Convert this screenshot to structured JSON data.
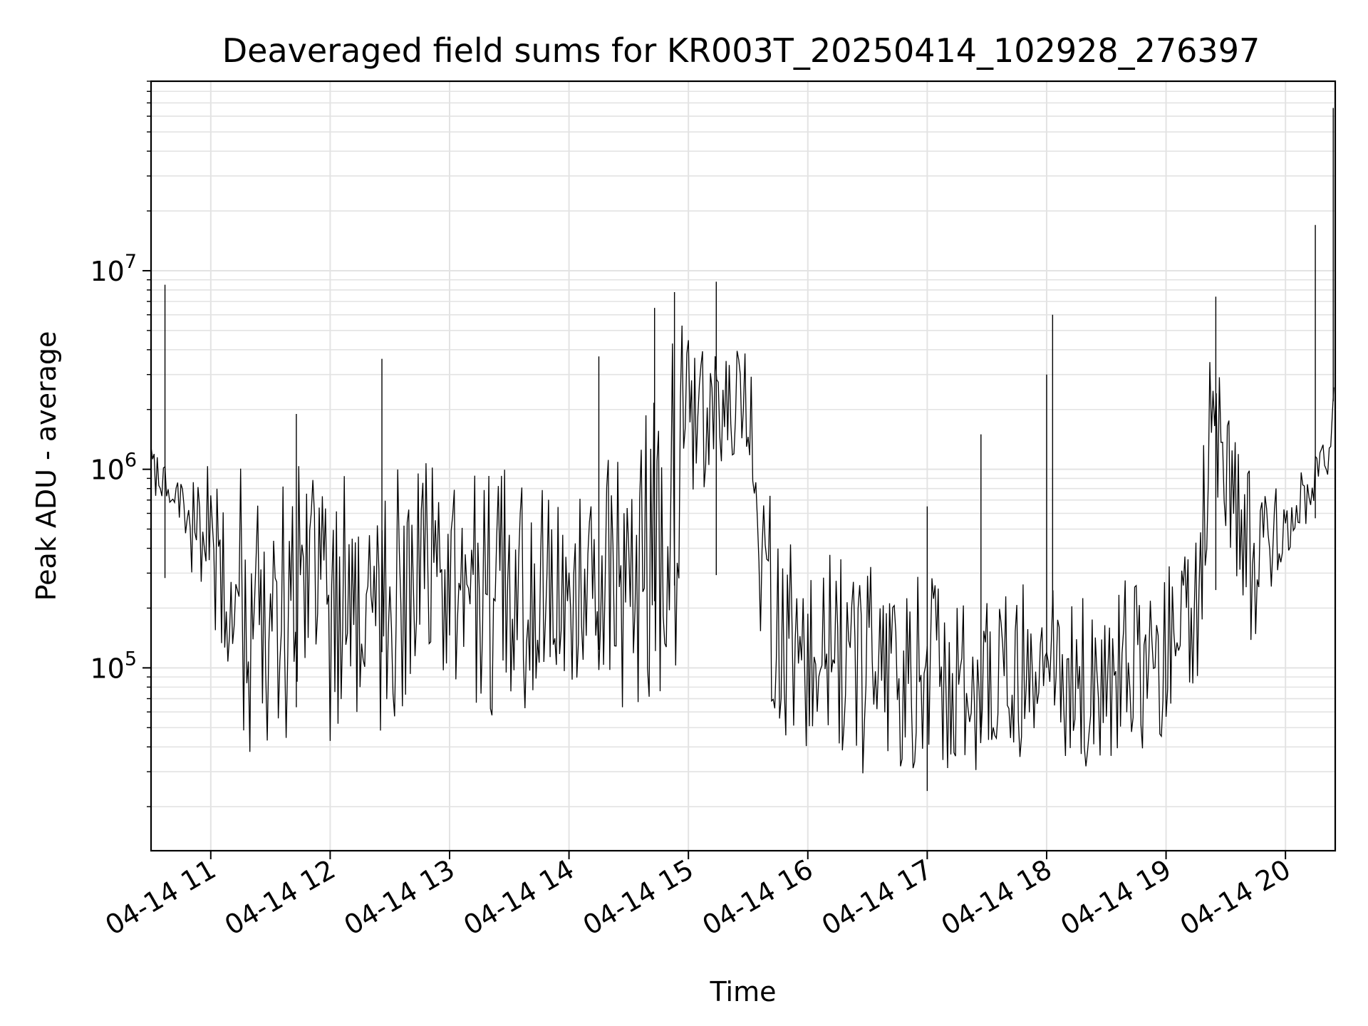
{
  "chart_data": {
    "type": "line",
    "title": "Deaveraged field sums for KR003T_20250414_102928_276397",
    "xlabel": "Time",
    "ylabel": "Peak ADU - average",
    "yscale": "log",
    "grid": true,
    "legend": "none",
    "line_color": "#000000",
    "xlim": [
      "2025-04-14 10:30",
      "2025-04-14 20:25"
    ],
    "ylim": [
      12000,
      90000000
    ],
    "x_ticks": [
      {
        "value": "2025-04-14 11:00",
        "label": "04-14 11"
      },
      {
        "value": "2025-04-14 12:00",
        "label": "04-14 12"
      },
      {
        "value": "2025-04-14 13:00",
        "label": "04-14 13"
      },
      {
        "value": "2025-04-14 14:00",
        "label": "04-14 14"
      },
      {
        "value": "2025-04-14 15:00",
        "label": "04-14 15"
      },
      {
        "value": "2025-04-14 16:00",
        "label": "04-14 16"
      },
      {
        "value": "2025-04-14 17:00",
        "label": "04-14 17"
      },
      {
        "value": "2025-04-14 18:00",
        "label": "04-14 18"
      },
      {
        "value": "2025-04-14 19:00",
        "label": "04-14 19"
      },
      {
        "value": "2025-04-14 20:00",
        "label": "04-14 20"
      }
    ],
    "y_ticks": [
      {
        "value": 100000,
        "base": "10",
        "exp": "5"
      },
      {
        "value": 1000000,
        "base": "10",
        "exp": "6"
      },
      {
        "value": 10000000,
        "base": "10",
        "exp": "7"
      }
    ],
    "series": [
      {
        "envelope_note": "approximate low/high envelope of the dense signal, one entry per time",
        "x": [
          "2025-04-14 10:30",
          "2025-04-14 10:37",
          "2025-04-14 10:45",
          "2025-04-14 10:52",
          "2025-04-14 11:00",
          "2025-04-14 11:07",
          "2025-04-14 11:15",
          "2025-04-14 11:22",
          "2025-04-14 11:30",
          "2025-04-14 11:45",
          "2025-04-14 12:00",
          "2025-04-14 12:15",
          "2025-04-14 12:30",
          "2025-04-14 12:45",
          "2025-04-14 13:00",
          "2025-04-14 13:15",
          "2025-04-14 13:30",
          "2025-04-14 13:45",
          "2025-04-14 14:00",
          "2025-04-14 14:15",
          "2025-04-14 14:30",
          "2025-04-14 14:45",
          "2025-04-14 14:52",
          "2025-04-14 15:00",
          "2025-04-14 15:15",
          "2025-04-14 15:30",
          "2025-04-14 15:37",
          "2025-04-14 15:45",
          "2025-04-14 16:00",
          "2025-04-14 16:15",
          "2025-04-14 16:30",
          "2025-04-14 16:45",
          "2025-04-14 17:00",
          "2025-04-14 17:15",
          "2025-04-14 17:30",
          "2025-04-14 17:45",
          "2025-04-14 18:00",
          "2025-04-14 18:15",
          "2025-04-14 18:30",
          "2025-04-14 18:45",
          "2025-04-14 19:00",
          "2025-04-14 19:15",
          "2025-04-14 19:22",
          "2025-04-14 19:30",
          "2025-04-14 19:45",
          "2025-04-14 20:00",
          "2025-04-14 20:15",
          "2025-04-14 20:22",
          "2025-04-14 20:25"
        ],
        "low": [
          700000,
          650000,
          500000,
          200000,
          120000,
          70000,
          40000,
          32000,
          35000,
          40000,
          38000,
          36000,
          30000,
          35000,
          40000,
          42000,
          45000,
          55000,
          60000,
          50000,
          40000,
          50000,
          40000,
          600000,
          800000,
          900000,
          100000,
          30000,
          32000,
          28000,
          27000,
          26000,
          22000,
          24000,
          26000,
          30000,
          40000,
          30000,
          27000,
          26000,
          35000,
          50000,
          300000,
          250000,
          120000,
          200000,
          700000,
          900000,
          1000000
        ],
        "high": [
          1600000,
          1100000,
          900000,
          1000000,
          1100000,
          1100000,
          1150000,
          1100000,
          1000000,
          1050000,
          1000000,
          1000000,
          1100000,
          1150000,
          1000000,
          1100000,
          1000000,
          950000,
          900000,
          1000000,
          1500000,
          2500000,
          6000000,
          5000000,
          5000000,
          4000000,
          3000000,
          450000,
          450000,
          380000,
          350000,
          320000,
          300000,
          300000,
          300000,
          260000,
          280000,
          230000,
          260000,
          300000,
          350000,
          450000,
          6500000,
          2000000,
          900000,
          900000,
          1200000,
          1500000,
          60000000
        ],
        "spikes": [
          {
            "x": "2025-04-14 10:37",
            "y": 8500000
          },
          {
            "x": "2025-04-14 11:43",
            "y": 1900000
          },
          {
            "x": "2025-04-14 12:26",
            "y": 3600000
          },
          {
            "x": "2025-04-14 14:15",
            "y": 3700000
          },
          {
            "x": "2025-04-14 14:43",
            "y": 6500000
          },
          {
            "x": "2025-04-14 14:53",
            "y": 7800000
          },
          {
            "x": "2025-04-14 15:14",
            "y": 8800000
          },
          {
            "x": "2025-04-14 17:00",
            "y": 650000
          },
          {
            "x": "2025-04-14 17:27",
            "y": 1500000
          },
          {
            "x": "2025-04-14 18:00",
            "y": 3000000
          },
          {
            "x": "2025-04-14 18:03",
            "y": 6000000
          },
          {
            "x": "2025-04-14 19:25",
            "y": 7400000
          },
          {
            "x": "2025-04-14 20:15",
            "y": 17000000
          },
          {
            "x": "2025-04-14 20:24",
            "y": 66000000
          }
        ]
      }
    ]
  }
}
